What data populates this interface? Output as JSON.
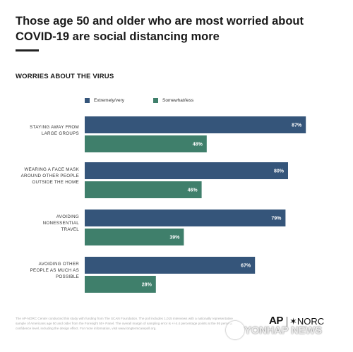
{
  "title": "Those age 50 and older who are most worried about COVID-19 are social distancing more",
  "subtitle": "WORRIES ABOUT THE VIRUS",
  "legend": [
    {
      "label": "Extremely/very",
      "color": "#35557a"
    },
    {
      "label": "Somewhat/less",
      "color": "#3f7f6b"
    }
  ],
  "chart_data": {
    "type": "bar",
    "orientation": "horizontal",
    "categories": [
      [
        "STAYING AWAY FROM",
        "LARGE GROUPS"
      ],
      [
        "WEARING A FACE MASK",
        "AROUND OTHER PEOPLE",
        "OUTSIDE THE HOME"
      ],
      [
        "AVOIDING",
        "NONESSENTIAL",
        "TRAVEL"
      ],
      [
        "AVOIDING OTHER",
        "PEOPLE AS MUCH AS",
        "POSSIBLE"
      ]
    ],
    "series": [
      {
        "name": "Extremely/very",
        "values": [
          87,
          80,
          79,
          67
        ],
        "labels": [
          "87%",
          "80%",
          "79%",
          "67%"
        ]
      },
      {
        "name": "Somewhat/less",
        "values": [
          48,
          46,
          39,
          28
        ],
        "labels": [
          "48%",
          "46%",
          "39%",
          "28%"
        ]
      }
    ],
    "xlim": [
      0,
      100
    ],
    "grid": false,
    "legend_position": "top"
  },
  "footnote": "The AP-NORC Center conducted this study with funding from The SCAN Foundation. The poll includes 1,015 interviews with a nationally representative sample of Americans age 50 and older from the Foresight 50+ Panel. The overall margin of sampling error is +/-4.4 percentage points at the 95 percent confidence level, including the design effect. For more information, visit www.longtermcarepoll.org.",
  "logos": {
    "ap": "AP",
    "norc": "✶NORC"
  },
  "watermark": "YONHAP NEWS"
}
